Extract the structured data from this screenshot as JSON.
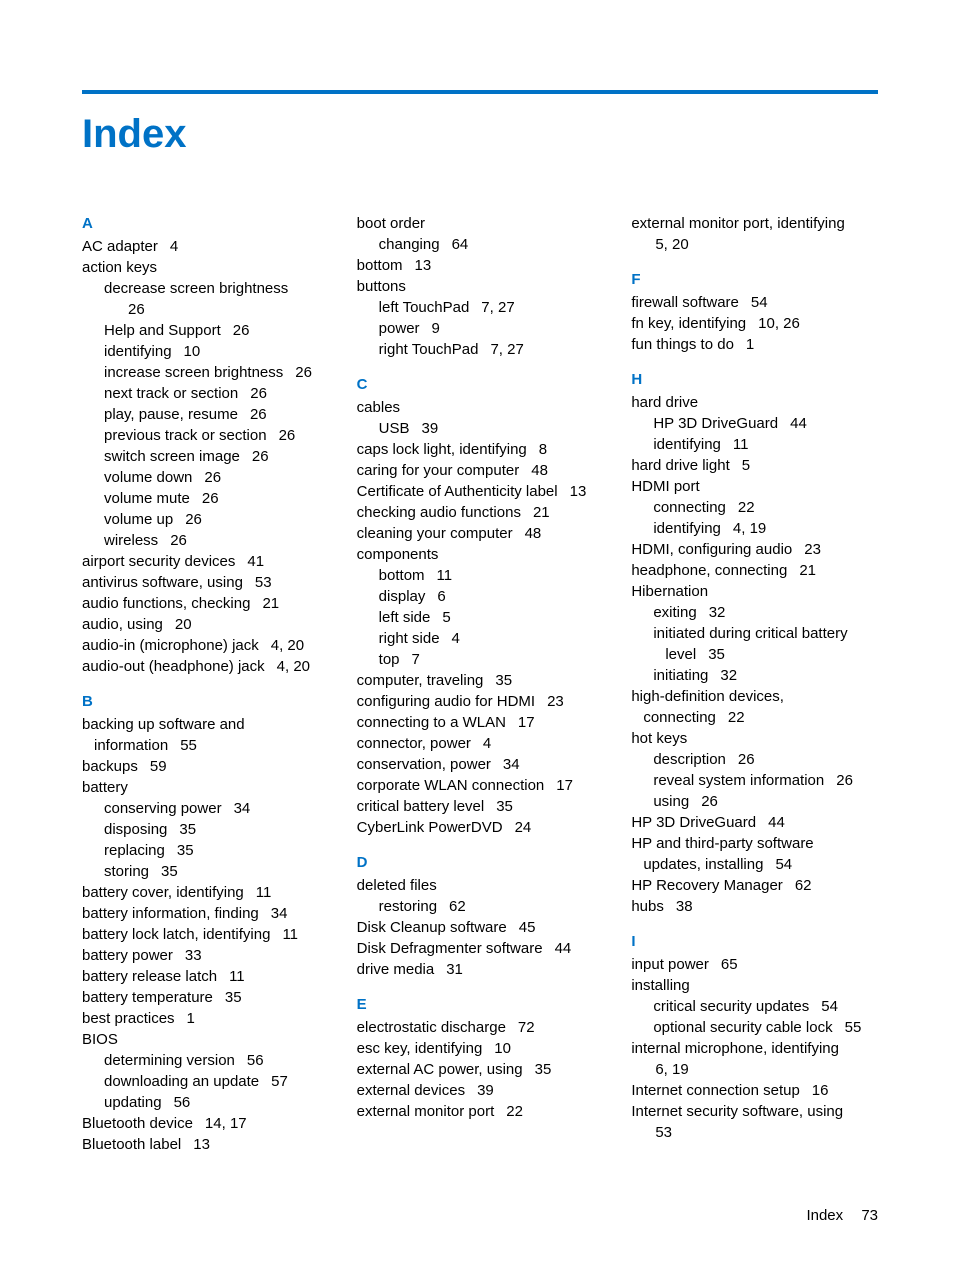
{
  "title": "Index",
  "accent_color": "#0072c6",
  "footer": {
    "label": "Index",
    "page": "73"
  },
  "columns": [
    [
      {
        "t": "letter",
        "text": "A",
        "first": true
      },
      {
        "t": "entry",
        "term": "AC adapter",
        "pages": "4"
      },
      {
        "t": "entry",
        "term": "action keys"
      },
      {
        "t": "sub",
        "term": "decrease screen brightness"
      },
      {
        "t": "sub2",
        "term": "",
        "pages": "26"
      },
      {
        "t": "sub",
        "term": "Help and Support",
        "pages": "26"
      },
      {
        "t": "sub",
        "term": "identifying",
        "pages": "10"
      },
      {
        "t": "sub",
        "term": "increase screen brightness",
        "pages": "26"
      },
      {
        "t": "sub",
        "term": "next track or section",
        "pages": "26"
      },
      {
        "t": "sub",
        "term": "play, pause, resume",
        "pages": "26"
      },
      {
        "t": "sub",
        "term": "previous track or section",
        "pages": "26"
      },
      {
        "t": "sub",
        "term": "switch screen image",
        "pages": "26"
      },
      {
        "t": "sub",
        "term": "volume down",
        "pages": "26"
      },
      {
        "t": "sub",
        "term": "volume mute",
        "pages": "26"
      },
      {
        "t": "sub",
        "term": "volume up",
        "pages": "26"
      },
      {
        "t": "sub",
        "term": "wireless",
        "pages": "26"
      },
      {
        "t": "entry",
        "term": "airport security devices",
        "pages": "41"
      },
      {
        "t": "entry",
        "term": "antivirus software, using",
        "pages": "53"
      },
      {
        "t": "entry",
        "term": "audio functions, checking",
        "pages": "21"
      },
      {
        "t": "entry",
        "term": "audio, using",
        "pages": "20"
      },
      {
        "t": "entry",
        "term": "audio-in (microphone) jack",
        "pages": "4, 20"
      },
      {
        "t": "entry",
        "term": "audio-out (headphone) jack",
        "pages": "4, 20"
      },
      {
        "t": "letter",
        "text": "B"
      },
      {
        "t": "entry",
        "term": "backing up software and"
      },
      {
        "t": "cont",
        "term": "information",
        "pages": "55"
      },
      {
        "t": "entry",
        "term": "backups",
        "pages": "59"
      },
      {
        "t": "entry",
        "term": "battery"
      },
      {
        "t": "sub",
        "term": "conserving power",
        "pages": "34"
      },
      {
        "t": "sub",
        "term": "disposing",
        "pages": "35"
      },
      {
        "t": "sub",
        "term": "replacing",
        "pages": "35"
      },
      {
        "t": "sub",
        "term": "storing",
        "pages": "35"
      },
      {
        "t": "entry",
        "term": "battery cover, identifying",
        "pages": "11"
      },
      {
        "t": "entry",
        "term": "battery information, finding",
        "pages": "34"
      },
      {
        "t": "entry",
        "term": "battery lock latch, identifying",
        "pages": "11"
      },
      {
        "t": "entry",
        "term": "battery power",
        "pages": "33"
      },
      {
        "t": "entry",
        "term": "battery release latch",
        "pages": "11"
      },
      {
        "t": "entry",
        "term": "battery temperature",
        "pages": "35"
      },
      {
        "t": "entry",
        "term": "best practices",
        "pages": "1"
      },
      {
        "t": "entry",
        "term": "BIOS"
      },
      {
        "t": "sub",
        "term": "determining version",
        "pages": "56"
      },
      {
        "t": "sub",
        "term": "downloading an update",
        "pages": "57"
      },
      {
        "t": "sub",
        "term": "updating",
        "pages": "56"
      },
      {
        "t": "entry",
        "term": "Bluetooth device",
        "pages": "14, 17"
      },
      {
        "t": "entry",
        "term": "Bluetooth label",
        "pages": "13"
      }
    ],
    [
      {
        "t": "entry",
        "term": "boot order"
      },
      {
        "t": "sub",
        "term": "changing",
        "pages": "64"
      },
      {
        "t": "entry",
        "term": "bottom",
        "pages": "13"
      },
      {
        "t": "entry",
        "term": "buttons"
      },
      {
        "t": "sub",
        "term": "left TouchPad",
        "pages": "7, 27"
      },
      {
        "t": "sub",
        "term": "power",
        "pages": "9"
      },
      {
        "t": "sub",
        "term": "right TouchPad",
        "pages": "7, 27"
      },
      {
        "t": "letter",
        "text": "C"
      },
      {
        "t": "entry",
        "term": "cables"
      },
      {
        "t": "sub",
        "term": "USB",
        "pages": "39"
      },
      {
        "t": "entry",
        "term": "caps lock light, identifying",
        "pages": "8"
      },
      {
        "t": "entry",
        "term": "caring for your computer",
        "pages": "48"
      },
      {
        "t": "entry",
        "term": "Certificate of Authenticity label",
        "pages": "13"
      },
      {
        "t": "entry",
        "term": "checking audio functions",
        "pages": "21"
      },
      {
        "t": "entry",
        "term": "cleaning your computer",
        "pages": "48"
      },
      {
        "t": "entry",
        "term": "components"
      },
      {
        "t": "sub",
        "term": "bottom",
        "pages": "11"
      },
      {
        "t": "sub",
        "term": "display",
        "pages": "6"
      },
      {
        "t": "sub",
        "term": "left side",
        "pages": "5"
      },
      {
        "t": "sub",
        "term": "right side",
        "pages": "4"
      },
      {
        "t": "sub",
        "term": "top",
        "pages": "7"
      },
      {
        "t": "entry",
        "term": "computer, traveling",
        "pages": "35"
      },
      {
        "t": "entry",
        "term": "configuring audio for HDMI",
        "pages": "23"
      },
      {
        "t": "entry",
        "term": "connecting to a WLAN",
        "pages": "17"
      },
      {
        "t": "entry",
        "term": "connector, power",
        "pages": "4"
      },
      {
        "t": "entry",
        "term": "conservation, power",
        "pages": "34"
      },
      {
        "t": "entry",
        "term": "corporate WLAN connection",
        "pages": "17"
      },
      {
        "t": "entry",
        "term": "critical battery level",
        "pages": "35"
      },
      {
        "t": "entry",
        "term": "CyberLink PowerDVD",
        "pages": "24"
      },
      {
        "t": "letter",
        "text": "D"
      },
      {
        "t": "entry",
        "term": "deleted files"
      },
      {
        "t": "sub",
        "term": "restoring",
        "pages": "62"
      },
      {
        "t": "entry",
        "term": "Disk Cleanup software",
        "pages": "45"
      },
      {
        "t": "entry",
        "term": "Disk Defragmenter software",
        "pages": "44"
      },
      {
        "t": "entry",
        "term": "drive media",
        "pages": "31"
      },
      {
        "t": "letter",
        "text": "E"
      },
      {
        "t": "entry",
        "term": "electrostatic discharge",
        "pages": "72"
      },
      {
        "t": "entry",
        "term": "esc key, identifying",
        "pages": "10"
      },
      {
        "t": "entry",
        "term": "external AC power, using",
        "pages": "35"
      },
      {
        "t": "entry",
        "term": "external devices",
        "pages": "39"
      },
      {
        "t": "entry",
        "term": "external monitor port",
        "pages": "22"
      }
    ],
    [
      {
        "t": "entry",
        "term": "external monitor port, identifying"
      },
      {
        "t": "cont",
        "term": "",
        "pages": "5, 20"
      },
      {
        "t": "letter",
        "text": "F"
      },
      {
        "t": "entry",
        "term": "firewall software",
        "pages": "54"
      },
      {
        "t": "entry",
        "term": "fn key, identifying",
        "pages": "10, 26"
      },
      {
        "t": "entry",
        "term": "fun things to do",
        "pages": "1"
      },
      {
        "t": "letter",
        "text": "H"
      },
      {
        "t": "entry",
        "term": "hard drive"
      },
      {
        "t": "sub",
        "term": "HP 3D DriveGuard",
        "pages": "44"
      },
      {
        "t": "sub",
        "term": "identifying",
        "pages": "11"
      },
      {
        "t": "entry",
        "term": "hard drive light",
        "pages": "5"
      },
      {
        "t": "entry",
        "term": "HDMI port"
      },
      {
        "t": "sub",
        "term": "connecting",
        "pages": "22"
      },
      {
        "t": "sub",
        "term": "identifying",
        "pages": "4, 19"
      },
      {
        "t": "entry",
        "term": "HDMI, configuring audio",
        "pages": "23"
      },
      {
        "t": "entry",
        "term": "headphone, connecting",
        "pages": "21"
      },
      {
        "t": "entry",
        "term": "Hibernation"
      },
      {
        "t": "sub",
        "term": "exiting",
        "pages": "32"
      },
      {
        "t": "sub",
        "term": "initiated during critical battery"
      },
      {
        "t": "sub2",
        "term": "level",
        "pages": "35"
      },
      {
        "t": "sub",
        "term": "initiating",
        "pages": "32"
      },
      {
        "t": "entry",
        "term": "high-definition devices,"
      },
      {
        "t": "cont",
        "term": "connecting",
        "pages": "22"
      },
      {
        "t": "entry",
        "term": "hot keys"
      },
      {
        "t": "sub",
        "term": "description",
        "pages": "26"
      },
      {
        "t": "sub",
        "term": "reveal system information",
        "pages": "26"
      },
      {
        "t": "sub",
        "term": "using",
        "pages": "26"
      },
      {
        "t": "entry",
        "term": "HP 3D DriveGuard",
        "pages": "44"
      },
      {
        "t": "entry",
        "term": "HP and third-party software"
      },
      {
        "t": "cont",
        "term": "updates, installing",
        "pages": "54"
      },
      {
        "t": "entry",
        "term": "HP Recovery Manager",
        "pages": "62"
      },
      {
        "t": "entry",
        "term": "hubs",
        "pages": "38"
      },
      {
        "t": "letter",
        "text": "I"
      },
      {
        "t": "entry",
        "term": "input power",
        "pages": "65"
      },
      {
        "t": "entry",
        "term": "installing"
      },
      {
        "t": "sub",
        "term": "critical security updates",
        "pages": "54"
      },
      {
        "t": "sub",
        "term": "optional security cable lock",
        "pages": "55"
      },
      {
        "t": "entry",
        "term": "internal microphone, identifying"
      },
      {
        "t": "cont",
        "term": "",
        "pages": "6, 19"
      },
      {
        "t": "entry",
        "term": "Internet connection setup",
        "pages": "16"
      },
      {
        "t": "entry",
        "term": "Internet security software, using"
      },
      {
        "t": "cont",
        "term": "",
        "pages": "53"
      }
    ]
  ]
}
